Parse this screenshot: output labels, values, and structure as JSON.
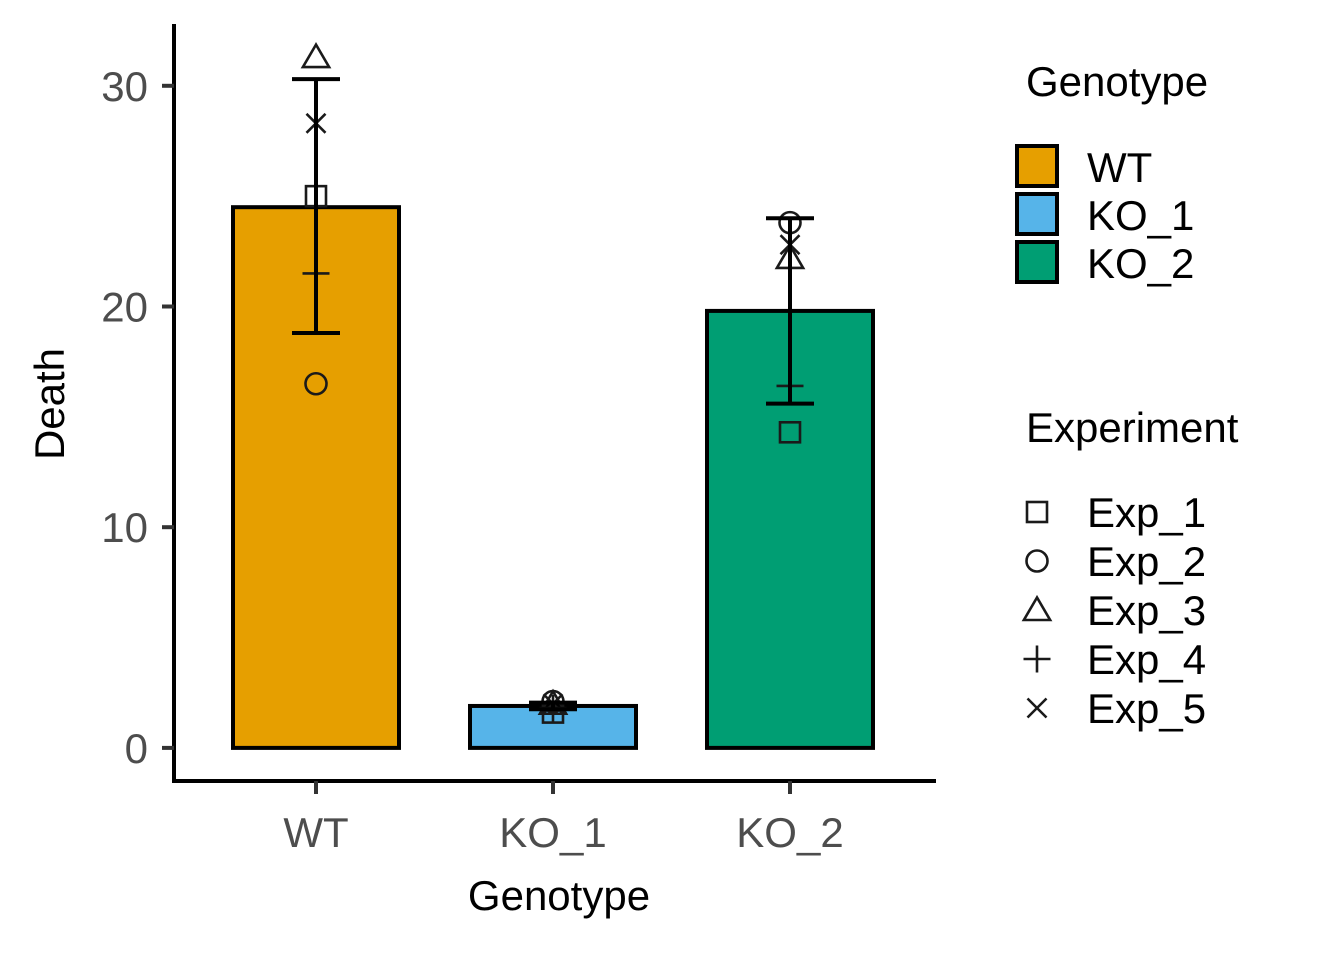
{
  "chart_data": {
    "type": "bar",
    "xlabel": "Genotype",
    "ylabel": "Death",
    "categories": [
      "WT",
      "KO_1",
      "KO_2"
    ],
    "values": [
      24.5,
      1.9,
      19.8
    ],
    "error_low": [
      18.8,
      1.75,
      15.6
    ],
    "error_high": [
      30.3,
      2.05,
      24.0
    ],
    "bar_colors": [
      "#E69F00",
      "#56B4E9",
      "#009E73"
    ],
    "ylim": [
      -1.5,
      32.8
    ],
    "yticks": [
      0,
      10,
      20,
      30
    ],
    "grid": false,
    "points": [
      {
        "category": "WT",
        "experiment": "Exp_1",
        "value": 25.0
      },
      {
        "category": "WT",
        "experiment": "Exp_2",
        "value": 16.5
      },
      {
        "category": "WT",
        "experiment": "Exp_3",
        "value": 31.3
      },
      {
        "category": "WT",
        "experiment": "Exp_4",
        "value": 21.5
      },
      {
        "category": "WT",
        "experiment": "Exp_5",
        "value": 28.3
      },
      {
        "category": "KO_1",
        "experiment": "Exp_1",
        "value": 1.6
      },
      {
        "category": "KO_1",
        "experiment": "Exp_2",
        "value": 2.1
      },
      {
        "category": "KO_1",
        "experiment": "Exp_3",
        "value": 2.0
      },
      {
        "category": "KO_1",
        "experiment": "Exp_4",
        "value": 1.8
      },
      {
        "category": "KO_1",
        "experiment": "Exp_5",
        "value": 2.0
      },
      {
        "category": "KO_2",
        "experiment": "Exp_1",
        "value": 14.3
      },
      {
        "category": "KO_2",
        "experiment": "Exp_2",
        "value": 23.8
      },
      {
        "category": "KO_2",
        "experiment": "Exp_3",
        "value": 22.2
      },
      {
        "category": "KO_2",
        "experiment": "Exp_4",
        "value": 16.4
      },
      {
        "category": "KO_2",
        "experiment": "Exp_5",
        "value": 22.8
      }
    ],
    "legend_position": "right",
    "legends": [
      {
        "title": "Genotype",
        "items": [
          {
            "label": "WT",
            "color": "#E69F00"
          },
          {
            "label": "KO_1",
            "color": "#56B4E9"
          },
          {
            "label": "KO_2",
            "color": "#009E73"
          }
        ]
      },
      {
        "title": "Experiment",
        "items": [
          {
            "label": "Exp_1",
            "shape": "square"
          },
          {
            "label": "Exp_2",
            "shape": "circle"
          },
          {
            "label": "Exp_3",
            "shape": "triangle"
          },
          {
            "label": "Exp_4",
            "shape": "plus"
          },
          {
            "label": "Exp_5",
            "shape": "cross"
          }
        ]
      }
    ]
  }
}
